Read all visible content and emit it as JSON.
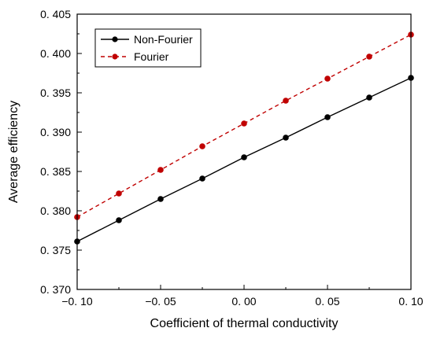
{
  "chart_data": {
    "type": "line",
    "title": "",
    "xlabel": "Coefficient of thermal conductivity",
    "ylabel": "Average efficiency",
    "xlim": [
      -0.1,
      0.1
    ],
    "ylim": [
      0.37,
      0.405
    ],
    "x_ticks": [
      -0.1,
      -0.05,
      0.0,
      0.05,
      0.1
    ],
    "x_tick_labels": [
      "−0. 10",
      "−0. 05",
      "0. 00",
      "0. 05",
      "0. 10"
    ],
    "y_ticks": [
      0.37,
      0.375,
      0.38,
      0.385,
      0.39,
      0.395,
      0.4,
      0.405
    ],
    "y_tick_labels": [
      "0. 370",
      "0. 375",
      "0. 380",
      "0. 385",
      "0. 390",
      "0. 395",
      "0. 400",
      "0. 405"
    ],
    "grid": false,
    "legend_position": "top-left",
    "x": [
      -0.1,
      -0.075,
      -0.05,
      -0.025,
      0.0,
      0.025,
      0.05,
      0.075,
      0.1
    ],
    "series": [
      {
        "name": "Non-Fourier",
        "color": "#000000",
        "line_style": "solid",
        "values": [
          0.3761,
          0.3788,
          0.3815,
          0.3841,
          0.3868,
          0.3893,
          0.3919,
          0.3944,
          0.3969
        ]
      },
      {
        "name": "Fourier",
        "color": "#c00000",
        "line_style": "dashed",
        "values": [
          0.3792,
          0.3822,
          0.3852,
          0.3882,
          0.3911,
          0.394,
          0.3968,
          0.3996,
          0.4024
        ]
      }
    ]
  }
}
